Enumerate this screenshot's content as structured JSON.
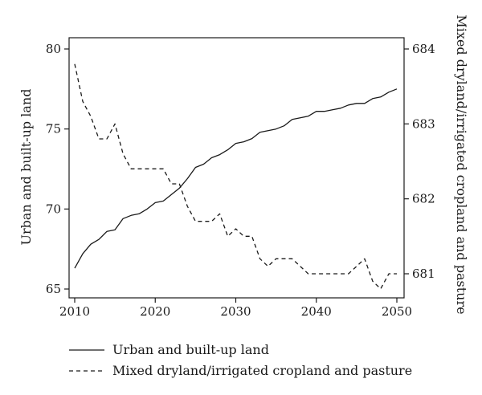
{
  "chart_data": {
    "type": "line",
    "title": "",
    "x_ticks": [
      2010,
      2020,
      2030,
      2040,
      2050
    ],
    "xlim": [
      2010,
      2050
    ],
    "y_left": {
      "label": "Urban and built-up land",
      "lim": [
        65,
        80
      ],
      "ticks": [
        65,
        70,
        75,
        80
      ]
    },
    "y_right": {
      "label": "Mixed dryland/irrigated cropland and pasture",
      "lim": [
        680.8,
        684
      ],
      "ticks": [
        681,
        682,
        683,
        684
      ]
    },
    "legend_position": "bottom",
    "grid": false,
    "series": [
      {
        "name": "Urban and built-up land",
        "axis": "left",
        "style": "solid",
        "x": [
          2010,
          2011,
          2012,
          2013,
          2014,
          2015,
          2016,
          2017,
          2018,
          2019,
          2020,
          2021,
          2022,
          2023,
          2024,
          2025,
          2026,
          2027,
          2028,
          2029,
          2030,
          2031,
          2032,
          2033,
          2034,
          2035,
          2036,
          2037,
          2038,
          2039,
          2040,
          2041,
          2042,
          2043,
          2044,
          2045,
          2046,
          2047,
          2048,
          2049,
          2050
        ],
        "values": [
          66.3,
          67.2,
          67.8,
          68.1,
          68.6,
          68.7,
          69.4,
          69.6,
          69.7,
          70.0,
          70.4,
          70.5,
          70.9,
          71.3,
          71.9,
          72.6,
          72.8,
          73.2,
          73.4,
          73.7,
          74.1,
          74.2,
          74.4,
          74.8,
          74.9,
          75.0,
          75.2,
          75.6,
          75.7,
          75.8,
          76.1,
          76.1,
          76.2,
          76.3,
          76.5,
          76.6,
          76.6,
          76.9,
          77.0,
          77.3,
          77.5
        ]
      },
      {
        "name": "Mixed dryland/irrigated cropland and pasture",
        "axis": "right",
        "style": "dashed",
        "x": [
          2010,
          2011,
          2012,
          2013,
          2014,
          2015,
          2016,
          2017,
          2018,
          2019,
          2020,
          2021,
          2022,
          2023,
          2024,
          2025,
          2026,
          2027,
          2028,
          2029,
          2030,
          2031,
          2032,
          2033,
          2034,
          2035,
          2036,
          2037,
          2038,
          2039,
          2040,
          2041,
          2042,
          2043,
          2044,
          2045,
          2046,
          2047,
          2048,
          2049,
          2050
        ],
        "values": [
          683.8,
          683.3,
          683.1,
          682.8,
          682.8,
          683.0,
          682.6,
          682.4,
          682.4,
          682.4,
          682.4,
          682.4,
          682.2,
          682.2,
          681.9,
          681.7,
          681.7,
          681.7,
          681.8,
          681.5,
          681.6,
          681.5,
          681.5,
          681.2,
          681.1,
          681.2,
          681.2,
          681.2,
          681.1,
          681.0,
          681.0,
          681.0,
          681.0,
          681.0,
          681.0,
          681.1,
          681.2,
          680.9,
          680.8,
          681.0,
          681.0
        ]
      }
    ]
  }
}
